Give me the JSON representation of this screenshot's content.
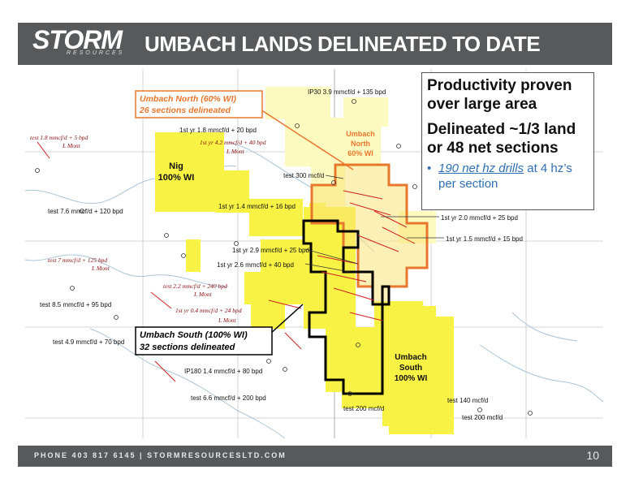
{
  "header": {
    "logo": "STORM",
    "logo_sub": "RESOURCES",
    "title": "UMBACH LANDS DELINEATED TO DATE"
  },
  "callout": {
    "line1": "Productivity proven over large area",
    "line2": "Delineated ~1/3 land or 48 net sections",
    "bullet_link": "190 net hz drills",
    "bullet_rest": " at 4 hz’s per section"
  },
  "map": {
    "umbach_north_label": {
      "line1": "Umbach North (60% WI)",
      "line2": "26 sections delineated"
    },
    "umbach_south_label": {
      "line1": "Umbach South (100% WI)",
      "line2": "32 sections delineated"
    },
    "zones": {
      "nig": {
        "line1": "Nig",
        "line2": "100% WI"
      },
      "north": {
        "line1": "Umbach",
        "line2": "North",
        "line3": "60% WI"
      },
      "south": {
        "line1": "Umbach",
        "line2": "South",
        "line3": "100% WI"
      }
    },
    "well_labels": [
      "IP30 3.9 mmcf/d + 135 bpd",
      "1st yr 1.8 mmcf/d + 20 bpd",
      "test 300 mcf/d",
      "test 7.6 mmcf/d + 120 bpd",
      "1st yr 1.4 mmcf/d + 16 bpd",
      "1st yr 2.0 mmcf/d + 25 bpd",
      "1st yr 1.5 mmcf/d + 15 bpd",
      "1st yr 2.9 mmcf/d + 25 bpd",
      "1st yr 2.6 mmcf/d + 40 bpd",
      "test 8.5 mmcf/d + 95 bpd",
      "test 4.9 mmcf/d + 70 bpd",
      "IP180 1.4 mmcf/d + 80 bpd",
      "test 6.6 mmcf/d + 200 bpd",
      "test 200 mcf/d",
      "test 140 mcf/d",
      "test 200 mcf/d"
    ],
    "competitor_labels": [
      "test 1.8 mmcf/d + 5 bpd",
      "L Mont",
      "1st yr 4.2 mmcf/d + 40 bpd",
      "L Mont",
      "test 7 mmcf/d + 125 bpd",
      "L Mont",
      "test 2.2 mmcf/d + 240 bpd",
      "L Mont",
      "1st yr 0.4 mmcf/d + 24 bpd",
      "L Mont"
    ]
  },
  "footer": {
    "text": "PHONE 403 817 6145   |   STORMRESOURCESLTD.COM",
    "page": "10"
  },
  "colors": {
    "header_bg": "#58595b",
    "light_yellow": "#fdfabf",
    "yellow": "#f7f244",
    "north_border": "#e8772e",
    "south_border": "#000000",
    "link_blue": "#2f6fb3"
  }
}
